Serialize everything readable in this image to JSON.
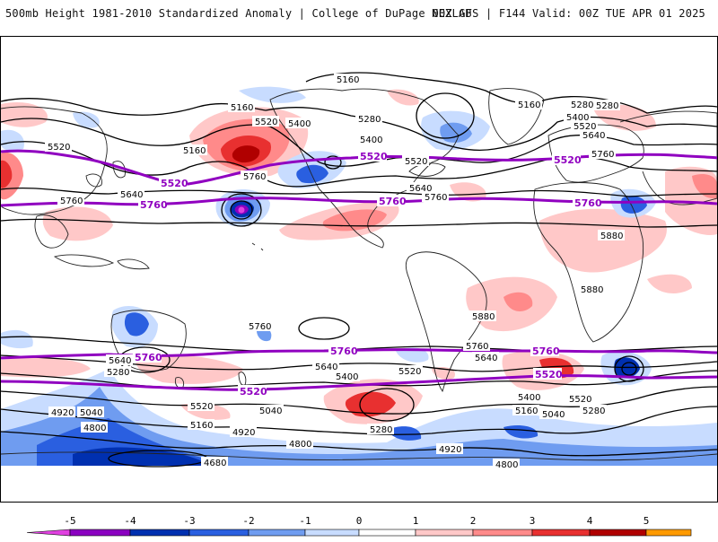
{
  "header": {
    "title": "500mb Height 1981-2010 Standardized Anomaly | College of DuPage NEXLAB",
    "run_info": "00Z GFS | F144 Valid: 00Z TUE APR 01 2025"
  },
  "colorbar": {
    "ticks": [
      "-5",
      "-4",
      "-3",
      "-2",
      "-1",
      "0",
      "1",
      "2",
      "3",
      "4",
      "5"
    ],
    "colors": [
      "#e040e0",
      "#8a00c0",
      "#0030b0",
      "#2a5fe0",
      "#6f9cf0",
      "#c8dcff",
      "#ffffff",
      "#ffc8c8",
      "#ff8a8a",
      "#e83030",
      "#b00000",
      "#ff9a00",
      "#ffd000"
    ]
  },
  "map": {
    "highlight_contours": [
      "5520",
      "5760"
    ],
    "contour_labels": [
      "5160",
      "5160",
      "5160",
      "5280",
      "5280",
      "5400",
      "5520",
      "5520",
      "5640",
      "5760",
      "5760",
      "5400",
      "5520",
      "5640",
      "5760",
      "5400",
      "5280",
      "5160",
      "5520",
      "5640",
      "5760",
      "5880",
      "5880",
      "5880",
      "5760",
      "5640",
      "5760",
      "5280",
      "5520",
      "5400",
      "5040",
      "4920",
      "4800",
      "4680",
      "5160",
      "5040",
      "5280",
      "5520",
      "5400",
      "5640",
      "4920",
      "4800",
      "4920",
      "4800",
      "5160",
      "5040",
      "5280",
      "5400",
      "5520",
      "5520",
      "5640"
    ],
    "purple_labels": [
      "5520",
      "5520",
      "5520",
      "5760",
      "5760",
      "5760",
      "5760",
      "5760",
      "5520",
      "5520",
      "5760"
    ]
  }
}
